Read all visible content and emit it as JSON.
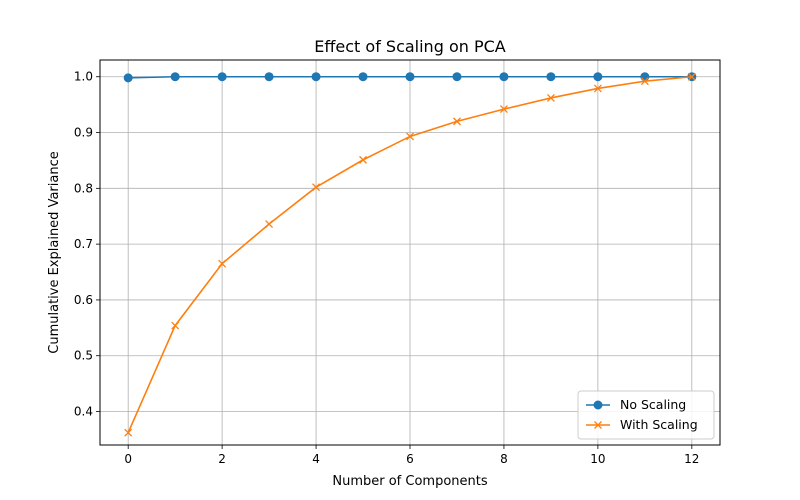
{
  "chart_data": {
    "type": "line",
    "title": "Effect of Scaling on PCA",
    "xlabel": "Number of Components",
    "ylabel": "Cumulative Explained Variance",
    "xlim": [
      -0.6,
      12.6
    ],
    "ylim": [
      0.34,
      1.03
    ],
    "x": [
      0,
      1,
      2,
      3,
      4,
      5,
      6,
      7,
      8,
      9,
      10,
      11,
      12
    ],
    "xticks": [
      0,
      2,
      4,
      6,
      8,
      10,
      12
    ],
    "xtick_labels": [
      "0",
      "2",
      "4",
      "6",
      "8",
      "10",
      "12"
    ],
    "yticks": [
      0.4,
      0.5,
      0.6,
      0.7,
      0.8,
      0.9,
      1.0
    ],
    "ytick_labels": [
      "0.4",
      "0.5",
      "0.6",
      "0.7",
      "0.8",
      "0.9",
      "1.0"
    ],
    "grid": true,
    "legend_position": "lower-right",
    "series": [
      {
        "name": "No Scaling",
        "color": "#1f77b4",
        "marker": "circle",
        "values": [
          0.998,
          1.0,
          1.0,
          1.0,
          1.0,
          1.0,
          1.0,
          1.0,
          1.0,
          1.0,
          1.0,
          1.0,
          1.0
        ]
      },
      {
        "name": "With Scaling",
        "color": "#ff7f0e",
        "marker": "x",
        "values": [
          0.362,
          0.554,
          0.665,
          0.736,
          0.802,
          0.851,
          0.893,
          0.92,
          0.942,
          0.962,
          0.979,
          0.992,
          1.0
        ]
      }
    ]
  }
}
